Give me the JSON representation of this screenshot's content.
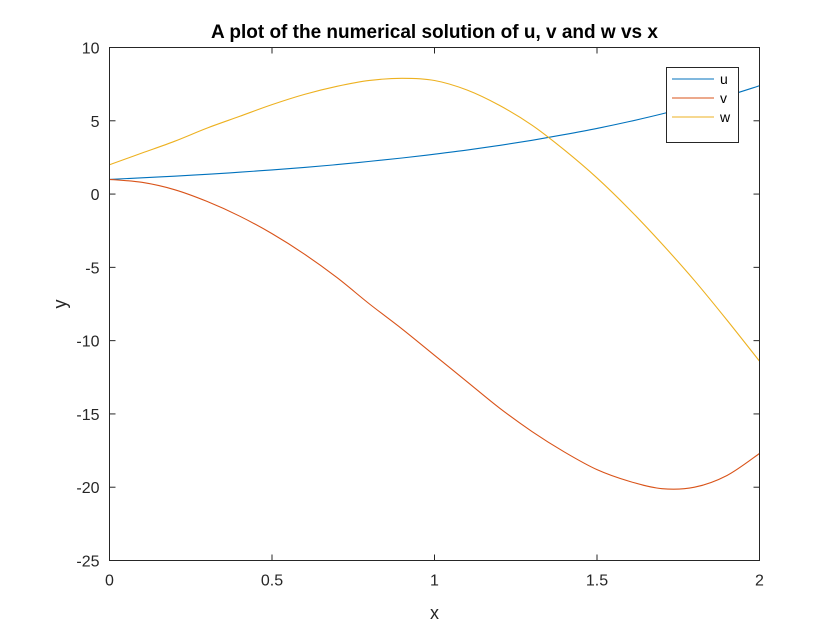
{
  "chart_data": {
    "type": "line",
    "title": "A plot of the numerical solution of u, v and w vs x",
    "xlabel": "x",
    "ylabel": "y",
    "xlim": [
      0,
      2
    ],
    "ylim": [
      -25,
      10
    ],
    "x_ticks": [
      0,
      0.5,
      1,
      1.5,
      2
    ],
    "x_tick_labels": [
      "0",
      "0.5",
      "1",
      "1.5",
      "2"
    ],
    "y_ticks": [
      10,
      5,
      0,
      -5,
      -10,
      -15,
      -20,
      -25
    ],
    "y_tick_labels": [
      "10",
      "5",
      "0",
      "-5",
      "-10",
      "-15",
      "-20",
      "-25"
    ],
    "grid": false,
    "legend_position": "top-right",
    "x": [
      0,
      0.1,
      0.2,
      0.3,
      0.4,
      0.5,
      0.6,
      0.7,
      0.8,
      0.9,
      1.0,
      1.1,
      1.2,
      1.3,
      1.4,
      1.5,
      1.6,
      1.7,
      1.8,
      1.9,
      2.0
    ],
    "series": [
      {
        "name": "u",
        "color": "#0072BD",
        "values": [
          1.0,
          1.11,
          1.22,
          1.35,
          1.49,
          1.65,
          1.82,
          2.01,
          2.23,
          2.46,
          2.72,
          3.0,
          3.32,
          3.67,
          4.06,
          4.48,
          4.95,
          5.47,
          6.05,
          6.69,
          7.39
        ]
      },
      {
        "name": "v",
        "color": "#D95319",
        "values": [
          1.0,
          0.8,
          0.3,
          -0.5,
          -1.5,
          -2.7,
          -4.1,
          -5.7,
          -7.5,
          -9.2,
          -11.0,
          -12.8,
          -14.6,
          -16.2,
          -17.6,
          -18.8,
          -19.6,
          -20.1,
          -20.0,
          -19.2,
          -17.7
        ]
      },
      {
        "name": "w",
        "color": "#EDB120",
        "values": [
          2.0,
          2.8,
          3.6,
          4.5,
          5.3,
          6.1,
          6.8,
          7.35,
          7.75,
          7.9,
          7.75,
          7.1,
          6.05,
          4.7,
          3.0,
          1.1,
          -1.05,
          -3.4,
          -5.9,
          -8.6,
          -11.4
        ]
      }
    ]
  }
}
